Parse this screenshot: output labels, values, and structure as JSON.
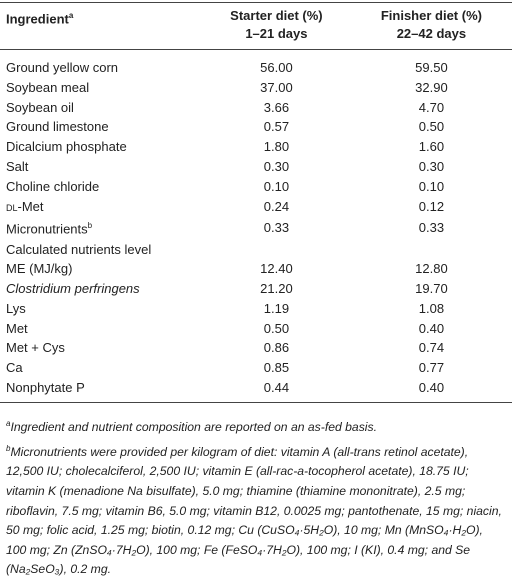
{
  "table": {
    "header": {
      "ingredient": "Ingredient",
      "ingredient_sup": "a",
      "starter": [
        "Starter diet (%)",
        "1–21 days"
      ],
      "finisher": [
        "Finisher diet (%)",
        "22–42 days"
      ]
    },
    "rows": [
      {
        "label": "Ground yellow corn",
        "starter": "56.00",
        "finisher": "59.50"
      },
      {
        "label": "Soybean meal",
        "starter": "37.00",
        "finisher": "32.90"
      },
      {
        "label": "Soybean oil",
        "starter": "3.66",
        "finisher": "4.70"
      },
      {
        "label": "Ground limestone",
        "starter": "0.57",
        "finisher": "0.50"
      },
      {
        "label": "Dicalcium phosphate",
        "starter": "1.80",
        "finisher": "1.60"
      },
      {
        "label": "Salt",
        "starter": "0.30",
        "finisher": "0.30"
      },
      {
        "label": "Choline chloride",
        "starter": "0.10",
        "finisher": "0.10"
      },
      {
        "label_smallcaps": "dl",
        "label": "-Met",
        "starter": "0.24",
        "finisher": "0.12"
      },
      {
        "label": "Micronutrients",
        "label_sup": "b",
        "starter": "0.33",
        "finisher": "0.33"
      },
      {
        "label": "Calculated nutrients level"
      },
      {
        "label": "ME (MJ/kg)",
        "starter": "12.40",
        "finisher": "12.80"
      },
      {
        "label": "Clostridium perfringens",
        "italic": true,
        "starter": "21.20",
        "finisher": "19.70"
      },
      {
        "label": "Lys",
        "starter": "1.19",
        "finisher": "1.08"
      },
      {
        "label": "Met",
        "starter": "0.50",
        "finisher": "0.40"
      },
      {
        "label": "Met + Cys",
        "starter": "0.86",
        "finisher": "0.74"
      },
      {
        "label": "Ca",
        "starter": "0.85",
        "finisher": "0.77"
      },
      {
        "label": "Nonphytate P",
        "starter": "0.44",
        "finisher": "0.40"
      }
    ]
  },
  "footnotes": [
    {
      "mark": "a",
      "text": "Ingredient and nutrient composition are reported on an as-fed basis."
    },
    {
      "mark": "b",
      "text": "Micronutrients were provided per kilogram of diet: vitamin A (all-trans retinol acetate), 12,500 IU; cholecalciferol, 2,500 IU; vitamin E (all-rac-a-tocopherol acetate), 18.75 IU; vitamin K (menadione Na bisulfate), 5.0 mg; thiamine (thiamine mononitrate), 2.5 mg; riboflavin, 7.5 mg; vitamin B6, 5.0 mg; vitamin B12, 0.0025 mg; pantothenate, 15 mg; niacin, 50 mg; folic acid, 1.25 mg; biotin, 0.12 mg; Cu (CuSO₄·5H₂O), 10 mg; Mn (MnSO₄·H₂O), 100 mg; Zn (ZnSO₄·7H₂O), 100 mg; Fe (FeSO₄·7H₂O), 100 mg; I (KI), 0.4 mg; and Se (Na₂SeO₃), 0.2 mg."
    }
  ]
}
